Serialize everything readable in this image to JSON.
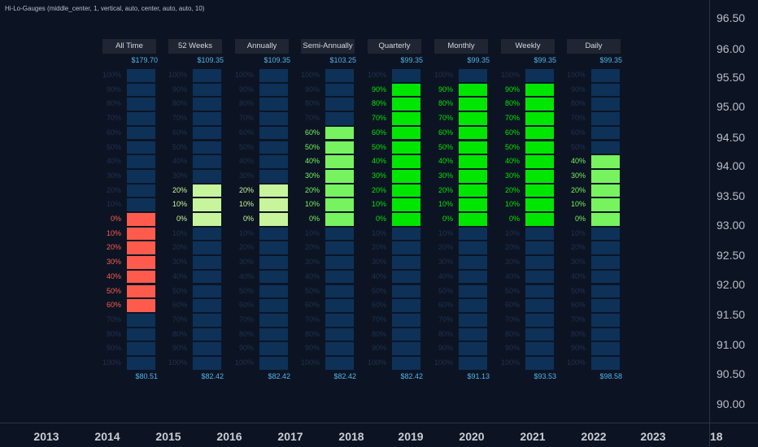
{
  "indicator": {
    "title": "Hi-Lo-Gauges (middle_center, 1, vertical, auto, center, auto, auto, 10)"
  },
  "price_axis": {
    "labels": [
      "96.50",
      "96.00",
      "95.50",
      "95.00",
      "94.50",
      "94.00",
      "93.50",
      "93.00",
      "92.50",
      "92.00",
      "91.50",
      "91.00",
      "90.50",
      "90.00"
    ],
    "corner_label": "18"
  },
  "time_axis": {
    "labels": [
      "2013",
      "2014",
      "2015",
      "2016",
      "2017",
      "2018",
      "2019",
      "2020",
      "2021",
      "2022",
      "2023"
    ]
  },
  "colors": {
    "empty_cell": "#0e3158",
    "red_cell": "#ff5b4d",
    "bright_green_cell": "#00e600",
    "mid_green_cell": "#76f35e",
    "light_green_cell": "#c7f59b",
    "price_text": "#52b3ea"
  },
  "gauge_scale": {
    "top_labels": [
      "100%",
      "90%",
      "80%",
      "70%",
      "60%",
      "50%",
      "40%",
      "30%",
      "20%",
      "10%",
      "0%"
    ],
    "bottom_labels": [
      "0%",
      "10%",
      "20%",
      "30%",
      "40%",
      "50%",
      "60%",
      "70%",
      "80%",
      "90%",
      "100%"
    ]
  },
  "gauges": [
    {
      "period": "All Time",
      "high": "$179.70",
      "low": "$80.51",
      "fill_direction": "down",
      "level": 60,
      "color": "#ff5b4d"
    },
    {
      "period": "52 Weeks",
      "high": "$109.35",
      "low": "$82.42",
      "fill_direction": "up",
      "level": 20,
      "color": "#c7f59b"
    },
    {
      "period": "Annually",
      "high": "$109.35",
      "low": "$82.42",
      "fill_direction": "up",
      "level": 20,
      "color": "#c7f59b"
    },
    {
      "period": "Semi-Annually",
      "high": "$103.25",
      "low": "$82.42",
      "fill_direction": "up",
      "level": 60,
      "color": "#76f35e"
    },
    {
      "period": "Quarterly",
      "high": "$99.35",
      "low": "$82.42",
      "fill_direction": "up",
      "level": 90,
      "color": "#00e600"
    },
    {
      "period": "Monthly",
      "high": "$99.35",
      "low": "$91.13",
      "fill_direction": "up",
      "level": 90,
      "color": "#00e600"
    },
    {
      "period": "Weekly",
      "high": "$99.35",
      "low": "$93.53",
      "fill_direction": "up",
      "level": 90,
      "color": "#00e600"
    },
    {
      "period": "Daily",
      "high": "$99.35",
      "low": "$98.58",
      "fill_direction": "up",
      "level": 40,
      "color": "#76f35e"
    }
  ]
}
